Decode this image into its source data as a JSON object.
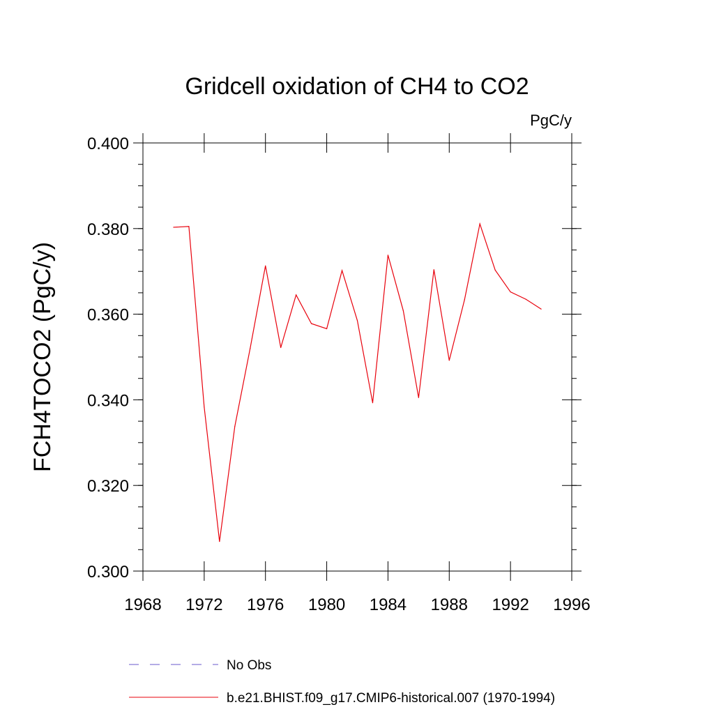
{
  "chart_data": {
    "type": "line",
    "title": "Gridcell oxidation of CH4 to CO2",
    "units": "PgC/y",
    "ylabel": "FCH4TOCO2  (PgC/y)",
    "xlabel": "",
    "xlim": [
      1968,
      1996
    ],
    "ylim": [
      0.3,
      0.4
    ],
    "x_ticks": [
      1968,
      1972,
      1976,
      1980,
      1984,
      1988,
      1992,
      1996
    ],
    "x_tick_labels": [
      "1968",
      "1972",
      "1976",
      "1980",
      "1984",
      "1988",
      "1992",
      "1996"
    ],
    "y_ticks": [
      0.3,
      0.32,
      0.34,
      0.36,
      0.38,
      0.4
    ],
    "y_tick_labels": [
      "0.300",
      "0.320",
      "0.340",
      "0.360",
      "0.380",
      "0.400"
    ],
    "grid": false,
    "series": [
      {
        "name": "b.e21.BHIST.f09_g17.CMIP6-historical.007 (1970-1994)",
        "color": "#e8000b",
        "style": "solid",
        "x": [
          1970,
          1971,
          1972,
          1973,
          1974,
          1975,
          1976,
          1977,
          1978,
          1979,
          1980,
          1981,
          1982,
          1983,
          1984,
          1985,
          1986,
          1987,
          1988,
          1989,
          1990,
          1991,
          1992,
          1993,
          1994
        ],
        "y": [
          0.3803,
          0.3805,
          0.3383,
          0.3069,
          0.3338,
          0.352,
          0.3713,
          0.3522,
          0.3645,
          0.3578,
          0.3566,
          0.3702,
          0.3585,
          0.3393,
          0.3738,
          0.3608,
          0.3405,
          0.3704,
          0.3492,
          0.3634,
          0.3811,
          0.3703,
          0.3652,
          0.3635,
          0.3612
        ]
      }
    ],
    "legend": [
      {
        "label": "No Obs",
        "color": "#6a5acd",
        "style": "dashed"
      },
      {
        "label": "b.e21.BHIST.f09_g17.CMIP6-historical.007 (1970-1994)",
        "color": "#e8000b",
        "style": "solid"
      }
    ],
    "legend_position": "bottom"
  }
}
